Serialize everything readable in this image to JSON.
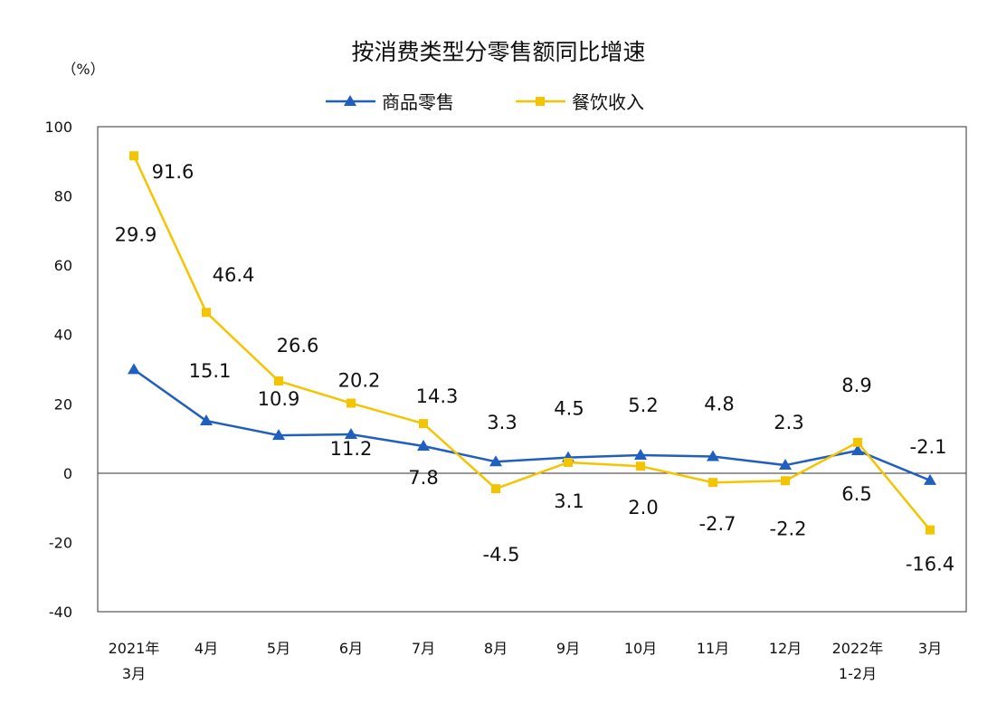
{
  "chart_data": {
    "type": "line",
    "title": "按消费类型分零售额同比增速",
    "ylabel": "（%）",
    "ylim": [
      -40,
      100
    ],
    "yticks": [
      "100",
      "80",
      "60",
      "40",
      "20",
      "0",
      "-20",
      "-40"
    ],
    "ytick_values": [
      100,
      80,
      60,
      40,
      20,
      0,
      -20,
      -40
    ],
    "grid": false,
    "legend_position": "top",
    "categories": [
      [
        "2021年",
        "3月"
      ],
      [
        "4月"
      ],
      [
        "5月"
      ],
      [
        "6月"
      ],
      [
        "7月"
      ],
      [
        "8月"
      ],
      [
        "9月"
      ],
      [
        "10月"
      ],
      [
        "11月"
      ],
      [
        "12月"
      ],
      [
        "2022年",
        "1-2月"
      ],
      [
        "3月"
      ]
    ],
    "series": [
      {
        "name": "商品零售",
        "color": "#1f5fc0",
        "marker": "triangle",
        "values": [
          29.9,
          15.1,
          10.9,
          11.2,
          7.8,
          3.3,
          4.5,
          5.2,
          4.8,
          2.3,
          6.5,
          -2.1
        ]
      },
      {
        "name": "餐饮收入",
        "color": "#f5c400",
        "marker": "square",
        "values": [
          91.6,
          46.4,
          26.6,
          20.2,
          14.3,
          -4.5,
          3.1,
          2.0,
          -2.7,
          -2.2,
          8.9,
          -16.4
        ]
      }
    ]
  }
}
